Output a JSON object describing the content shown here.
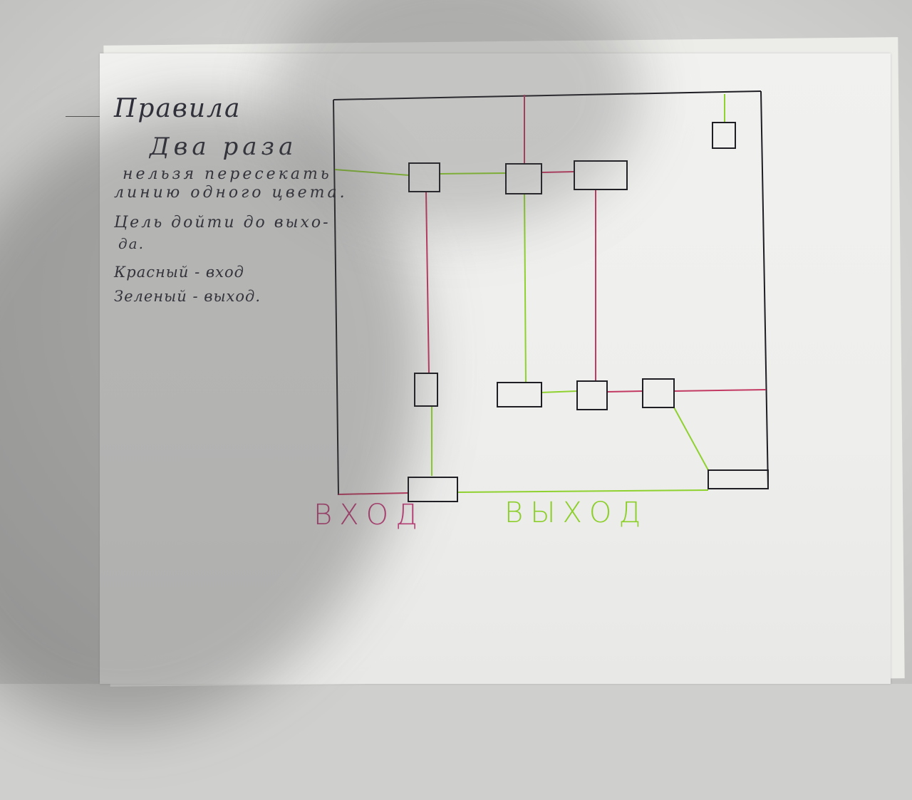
{
  "rules": {
    "title": "Правила",
    "line1": "Два раза",
    "line2": "нельзя пересекать",
    "line3": "линию одного цвета.",
    "line4": "Цель дойти до выхо-",
    "line5": "да.",
    "line6": "Красный - вход",
    "line7": "Зеленый - выход."
  },
  "labels": {
    "entrance": "ВХОД",
    "exit": "ВЫХОД"
  },
  "colors": {
    "red_line": "#c23a63",
    "green_line": "#8fd12f",
    "ink": "#1e1e24"
  }
}
